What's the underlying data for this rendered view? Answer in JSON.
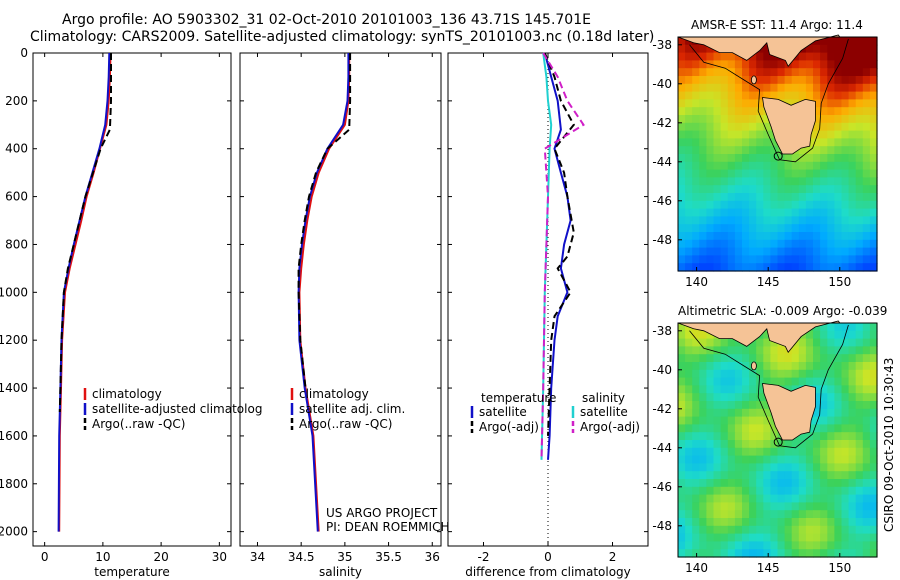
{
  "header": {
    "line1": "Argo profile: AO 5903302_31 02-Oct-2010 20101003_136 43.71S 145.701E",
    "line2": "Climatology: CARS2009. Satellite-adjusted climatology: synTS_20101003.nc (0.18d later)"
  },
  "colors": {
    "climatology": "#e01010",
    "satellite": "#1010c8",
    "argo": "#000000",
    "sal_satellite": "#20d0d0",
    "sal_argo": "#d020c8",
    "land": "#f5c396"
  },
  "depth_ticks": [
    "0",
    "200",
    "400",
    "600",
    "800",
    "1000",
    "1200",
    "1400",
    "1600",
    "1800",
    "2000"
  ],
  "chart_data": [
    {
      "type": "line",
      "xlabel": "temperature",
      "xlim": [
        -2,
        32
      ],
      "ylim": [
        2060,
        0
      ],
      "xticks": [
        "0",
        "10",
        "20",
        "30"
      ],
      "legend": [
        "climatology",
        "satellite-adjusted climatolog",
        "Argo(..raw -QC)"
      ],
      "series": [
        {
          "name": "climatology",
          "x": [
            11.3,
            11.2,
            11.0,
            10.6,
            9.5,
            8.4,
            7.2,
            6.3,
            5.3,
            4.3,
            3.5,
            3.0,
            2.8,
            2.6,
            2.5
          ],
          "y": [
            0,
            100,
            200,
            300,
            400,
            500,
            600,
            700,
            800,
            900,
            1000,
            1200,
            1400,
            1600,
            2000
          ]
        },
        {
          "name": "satellite-adjusted climatolog",
          "x": [
            11.1,
            11.0,
            10.8,
            10.4,
            9.4,
            8.2,
            7.0,
            6.0,
            5.0,
            4.1,
            3.3,
            2.9,
            2.7,
            2.5,
            2.4
          ],
          "y": [
            0,
            100,
            200,
            300,
            400,
            500,
            600,
            700,
            800,
            900,
            1000,
            1200,
            1400,
            1600,
            2000
          ]
        },
        {
          "name": "Argo(..raw -QC)",
          "x": [
            11.4,
            11.4,
            11.4,
            11.2,
            9.6,
            8.3,
            7.0,
            6.0,
            5.0,
            4.0,
            3.3,
            2.9,
            2.7,
            2.6
          ],
          "y": [
            0,
            100,
            200,
            320,
            400,
            500,
            600,
            700,
            800,
            900,
            1000,
            1200,
            1400,
            1500
          ]
        }
      ]
    },
    {
      "type": "line",
      "xlabel": "salinity",
      "xlim": [
        33.8,
        36.1
      ],
      "ylim": [
        2060,
        0
      ],
      "xticks": [
        "34",
        "34.5",
        "35",
        "35.5",
        "36"
      ],
      "legend": [
        "climatology",
        "satellite adj. clim.",
        "Argo(..raw -QC)"
      ],
      "annotation": [
        "US ARGO PROJECT",
        "PI: DEAN ROEMMICH"
      ],
      "series": [
        {
          "name": "climatology",
          "x": [
            35.05,
            35.05,
            35.04,
            35.0,
            34.82,
            34.7,
            34.62,
            34.57,
            34.53,
            34.5,
            34.48,
            34.49,
            34.55,
            34.64,
            34.7
          ],
          "y": [
            0,
            100,
            200,
            300,
            400,
            500,
            600,
            700,
            800,
            900,
            1000,
            1200,
            1400,
            1600,
            2000
          ]
        },
        {
          "name": "satellite adj. clim.",
          "x": [
            35.04,
            35.04,
            35.03,
            34.98,
            34.8,
            34.68,
            34.6,
            34.55,
            34.51,
            34.48,
            34.47,
            34.48,
            34.54,
            34.63,
            34.69
          ],
          "y": [
            0,
            100,
            200,
            300,
            400,
            500,
            600,
            700,
            800,
            900,
            1000,
            1200,
            1400,
            1600,
            2000
          ]
        },
        {
          "name": "Argo(..raw -QC)",
          "x": [
            35.06,
            35.06,
            35.06,
            35.05,
            34.8,
            34.67,
            34.59,
            34.54,
            34.5,
            34.47,
            34.47,
            34.49,
            34.55
          ],
          "y": [
            0,
            100,
            200,
            320,
            400,
            500,
            600,
            700,
            800,
            900,
            1000,
            1200,
            1400
          ]
        }
      ]
    },
    {
      "type": "line",
      "xlabel": "difference from climatology",
      "xlim": [
        -3.1,
        3.1
      ],
      "ylim": [
        2060,
        0
      ],
      "xticks": [
        "-2",
        "0",
        "2"
      ],
      "legend_headers": [
        "temperature",
        "salinity"
      ],
      "legend": [
        "satellite",
        "Argo(-adj)",
        "satellite",
        "Argo(-adj)"
      ],
      "series": [
        {
          "name": "satellite",
          "x": [
            -0.1,
            0.1,
            0.3,
            0.4,
            0.2,
            0.4,
            0.6,
            0.7,
            0.5,
            0.4,
            0.6,
            0.3,
            0.2,
            0.1,
            0.05,
            0.0
          ],
          "y": [
            0,
            100,
            200,
            320,
            400,
            500,
            600,
            700,
            800,
            900,
            1000,
            1100,
            1200,
            1400,
            1600,
            1700
          ]
        },
        {
          "name": "Argo(-adj)",
          "x": [
            -0.1,
            0.2,
            0.4,
            0.8,
            0.2,
            0.5,
            0.6,
            0.8,
            0.6,
            0.3,
            0.7,
            0.2,
            0.1,
            0.05,
            0.0
          ],
          "y": [
            0,
            100,
            200,
            300,
            400,
            500,
            600,
            750,
            850,
            900,
            1000,
            1100,
            1200,
            1400,
            1600
          ]
        },
        {
          "name": "satellite",
          "x": [
            -0.15,
            -0.05,
            0.0,
            0.1,
            0.05,
            0.0,
            -0.05,
            -0.1,
            -0.15,
            -0.2
          ],
          "y": [
            0,
            100,
            200,
            300,
            400,
            600,
            800,
            1000,
            1400,
            1700
          ]
        },
        {
          "name": "Argo(-adj)",
          "x": [
            -0.15,
            0.3,
            0.6,
            1.1,
            -0.1,
            0.0,
            -0.05,
            -0.1,
            -0.15,
            -0.2
          ],
          "y": [
            0,
            100,
            200,
            300,
            400,
            600,
            800,
            1000,
            1400,
            1700
          ]
        }
      ]
    }
  ],
  "maps": [
    {
      "title": "AMSR-E SST: 11.4 Argo: 11.4",
      "yticks": [
        "-38",
        "-40",
        "-42",
        "-44",
        "-46",
        "-48"
      ],
      "xticks": [
        "140",
        "145",
        "150"
      ]
    },
    {
      "title": "Altimetric SLA: -0.009 Argo: -0.039",
      "yticks": [
        "-38",
        "-40",
        "-42",
        "-44",
        "-46",
        "-48"
      ],
      "xticks": [
        "140",
        "145",
        "150"
      ]
    }
  ],
  "side_label": "CSIRO 09-Oct-2010 10:30:43"
}
